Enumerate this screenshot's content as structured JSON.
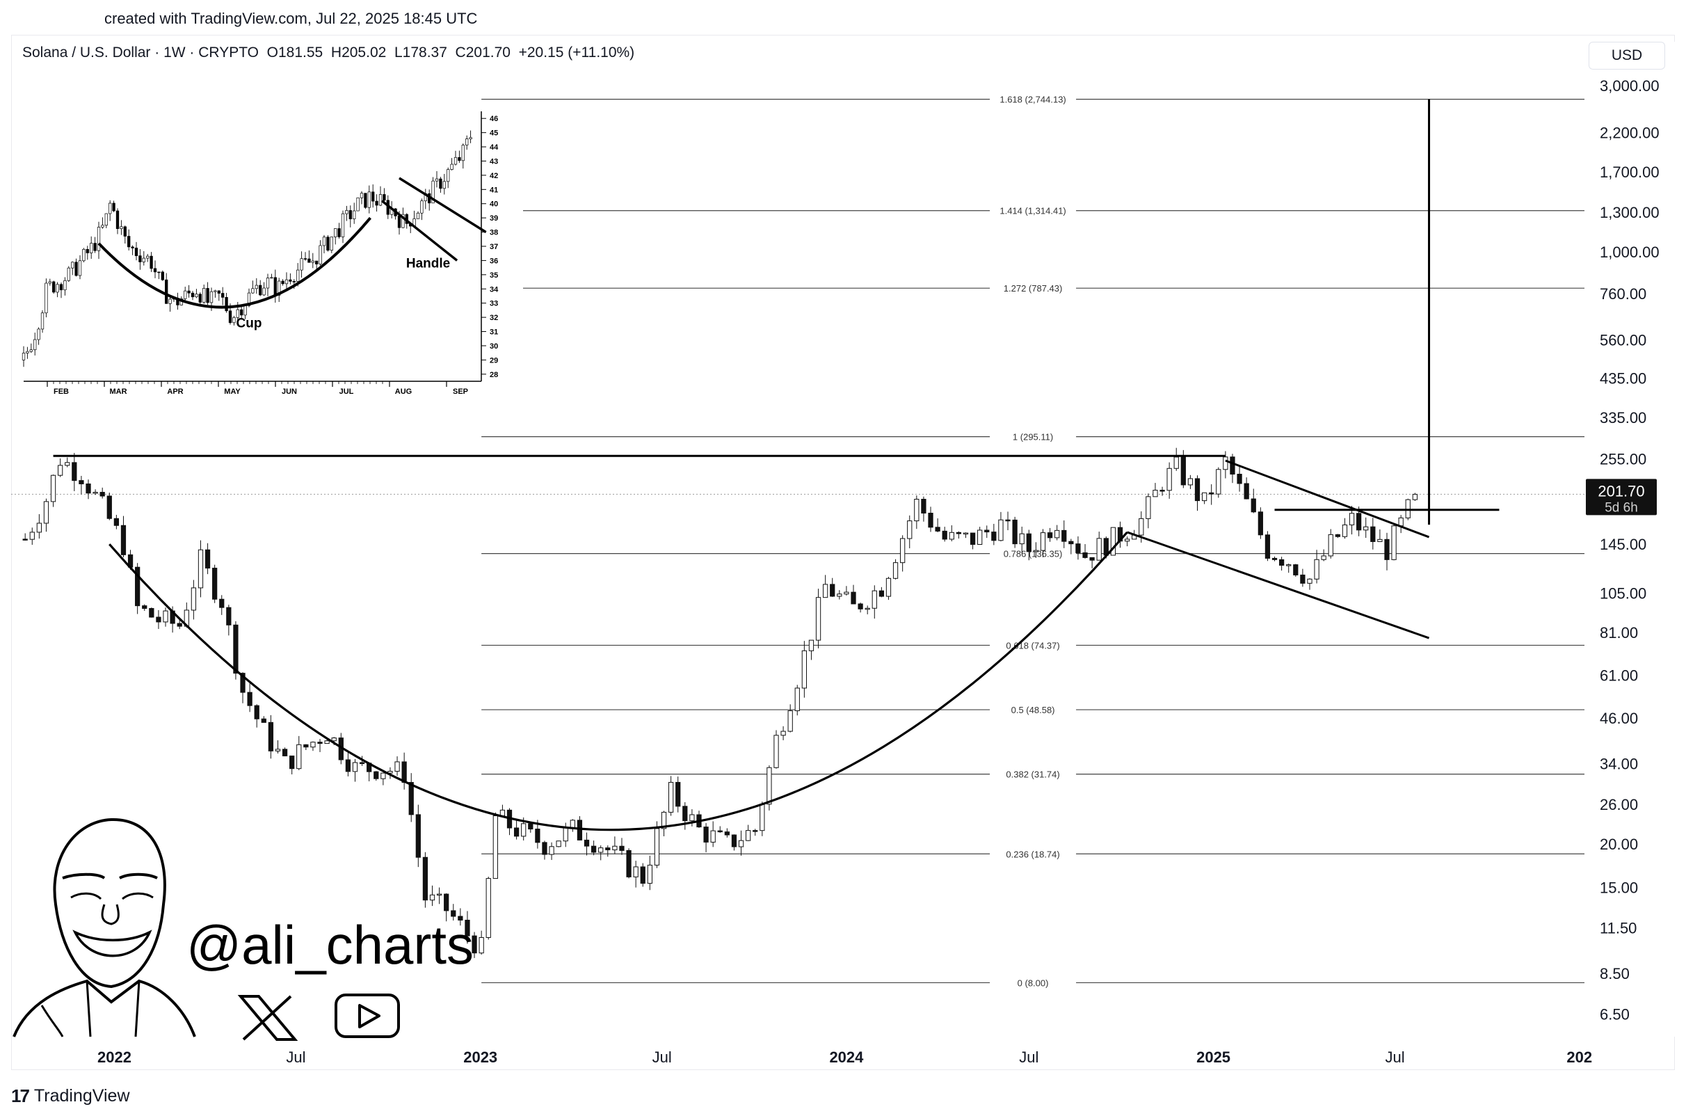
{
  "header": {
    "credit": "created with TradingView.com, Jul 22, 2025 18:45 UTC",
    "symbol": "Solana / U.S. Dollar · 1W · CRYPTO",
    "ohlc": "O181.55  H205.02  L178.37  C201.70  +20.15 (+11.10%)"
  },
  "currency_button": "USD",
  "price_tag": {
    "price": "201.70",
    "countdown": "5d 6h"
  },
  "brand": {
    "handle": "@ali_charts",
    "footer": "TradingView",
    "logo_mark": "17"
  },
  "icons": [
    "tradingview-logo-icon",
    "x-logo-icon",
    "youtube-play-icon",
    "caricature-avatar-icon"
  ],
  "chart_data": {
    "type": "candlestick",
    "yscale": "log",
    "ylim": [
      5.6,
      3400
    ],
    "x_ticks": [
      "2022",
      "Jul",
      "2023",
      "Jul",
      "2024",
      "Jul",
      "2025",
      "Jul",
      "202"
    ],
    "y_ticks": [
      "3,000.00",
      "2,200.00",
      "1,700.00",
      "1,300.00",
      "1,000.00",
      "760.00",
      "560.00",
      "435.00",
      "335.00",
      "255.00",
      "145.00",
      "105.00",
      "81.00",
      "61.00",
      "46.00",
      "34.00",
      "26.00",
      "20.00",
      "15.00",
      "11.50",
      "8.50",
      "6.50"
    ],
    "y_tick_values": [
      3000,
      2200,
      1700,
      1300,
      1000,
      760,
      560,
      435,
      335,
      255,
      145,
      105,
      81,
      61,
      46,
      34,
      26,
      20,
      15,
      11.5,
      8.5,
      6.5
    ],
    "last_price": 201.7,
    "fib_levels": [
      {
        "label": "1.618 (2,744.13)",
        "value": 2744.13
      },
      {
        "label": "1.414 (1,314.41)",
        "value": 1314.41
      },
      {
        "label": "1.272 (787.43)",
        "value": 787.43
      },
      {
        "label": "1 (295.11)",
        "value": 295.11
      },
      {
        "label": "0.786 (136.35)",
        "value": 136.35
      },
      {
        "label": "0.618 (74.37)",
        "value": 74.37
      },
      {
        "label": "0.5 (48.58)",
        "value": 48.58
      },
      {
        "label": "0.382 (31.74)",
        "value": 31.74
      },
      {
        "label": "0.236 (18.74)",
        "value": 18.74
      },
      {
        "label": "0 (8.00)",
        "value": 8.0
      }
    ],
    "price_path": [
      [
        "2021-10-04",
        150
      ],
      [
        "2021-10-25",
        195
      ],
      [
        "2021-11-08",
        255
      ],
      [
        "2021-11-29",
        230
      ],
      [
        "2021-12-20",
        185
      ],
      [
        "2022-01-10",
        145
      ],
      [
        "2022-01-24",
        95
      ],
      [
        "2022-02-14",
        88
      ],
      [
        "2022-03-07",
        85
      ],
      [
        "2022-03-28",
        130
      ],
      [
        "2022-04-18",
        100
      ],
      [
        "2022-05-09",
        55
      ],
      [
        "2022-05-30",
        42
      ],
      [
        "2022-06-20",
        34
      ],
      [
        "2022-07-11",
        38
      ],
      [
        "2022-08-01",
        42
      ],
      [
        "2022-08-29",
        33
      ],
      [
        "2022-09-26",
        33
      ],
      [
        "2022-10-17",
        32
      ],
      [
        "2022-11-07",
        14
      ],
      [
        "2022-11-28",
        13
      ],
      [
        "2022-12-19",
        11
      ],
      [
        "2023-01-02",
        10
      ],
      [
        "2023-01-16",
        24
      ],
      [
        "2023-02-06",
        22
      ],
      [
        "2023-03-06",
        20
      ],
      [
        "2023-04-03",
        22
      ],
      [
        "2023-05-01",
        20
      ],
      [
        "2023-06-12",
        16
      ],
      [
        "2023-07-10",
        28
      ],
      [
        "2023-08-07",
        22
      ],
      [
        "2023-09-04",
        20
      ],
      [
        "2023-10-02",
        22
      ],
      [
        "2023-10-23",
        40
      ],
      [
        "2023-11-13",
        60
      ],
      [
        "2023-12-11",
        110
      ],
      [
        "2024-01-08",
        95
      ],
      [
        "2024-02-05",
        110
      ],
      [
        "2024-03-11",
        190
      ],
      [
        "2024-04-08",
        150
      ],
      [
        "2024-05-06",
        150
      ],
      [
        "2024-06-03",
        165
      ],
      [
        "2024-07-01",
        140
      ],
      [
        "2024-07-29",
        170
      ],
      [
        "2024-08-26",
        135
      ],
      [
        "2024-09-23",
        150
      ],
      [
        "2024-10-21",
        170
      ],
      [
        "2024-11-11",
        220
      ],
      [
        "2024-11-25",
        240
      ],
      [
        "2024-12-23",
        190
      ],
      [
        "2025-01-13",
        250
      ],
      [
        "2025-02-03",
        190
      ],
      [
        "2025-02-24",
        140
      ],
      [
        "2025-03-17",
        130
      ],
      [
        "2025-04-07",
        115
      ],
      [
        "2025-04-28",
        145
      ],
      [
        "2025-05-19",
        170
      ],
      [
        "2025-06-09",
        150
      ],
      [
        "2025-06-23",
        140
      ],
      [
        "2025-07-07",
        165
      ],
      [
        "2025-07-21",
        201.7
      ]
    ],
    "pattern_lines": [
      {
        "name": "prior-high",
        "from": [
          "2021-11-01",
          260
        ],
        "to": [
          "2025-01-13",
          260
        ]
      },
      {
        "name": "breakout-level",
        "from": [
          "2025-03-03",
          182
        ],
        "to": [
          "2025-10-13",
          182
        ]
      },
      {
        "name": "flag-upper",
        "from": [
          "2025-01-13",
          252
        ],
        "to": [
          "2025-08-04",
          152
        ]
      },
      {
        "name": "flag-lower",
        "from": [
          "2024-10-07",
          157
        ],
        "to": [
          "2025-08-04",
          78
        ]
      },
      {
        "name": "target-projection",
        "from": [
          "2025-08-04",
          165
        ],
        "to": [
          "2025-08-04",
          2744
        ]
      }
    ],
    "inset": {
      "labels": {
        "cup": "Cup",
        "handle": "Handle"
      },
      "x_ticks": [
        "FEB",
        "MAR",
        "APR",
        "MAY",
        "JUN",
        "JUL",
        "AUG",
        "SEP"
      ],
      "y_ticks": [
        "46",
        "45",
        "44",
        "43",
        "42",
        "41",
        "40",
        "39",
        "38",
        "37",
        "36",
        "35",
        "34",
        "33",
        "32",
        "31",
        "30",
        "29",
        "28"
      ],
      "ylim": [
        27.5,
        46.5
      ],
      "price_path": [
        [
          0,
          29
        ],
        [
          2,
          31
        ],
        [
          4,
          34
        ],
        [
          6,
          34.5
        ],
        [
          8,
          35
        ],
        [
          10,
          36
        ],
        [
          12,
          37
        ],
        [
          14,
          38.5
        ],
        [
          15,
          40
        ],
        [
          16,
          39
        ],
        [
          18,
          37
        ],
        [
          20,
          36.5
        ],
        [
          22,
          36
        ],
        [
          24,
          34
        ],
        [
          26,
          33
        ],
        [
          28,
          33.5
        ],
        [
          30,
          34
        ],
        [
          32,
          33
        ],
        [
          34,
          33.5
        ],
        [
          36,
          32
        ],
        [
          38,
          33
        ],
        [
          40,
          34
        ],
        [
          42,
          34.5
        ],
        [
          44,
          34
        ],
        [
          46,
          35
        ],
        [
          48,
          35.5
        ],
        [
          50,
          36
        ],
        [
          52,
          37
        ],
        [
          54,
          38
        ],
        [
          56,
          39
        ],
        [
          58,
          40
        ],
        [
          60,
          40.5
        ],
        [
          62,
          40
        ],
        [
          64,
          39.5
        ],
        [
          66,
          38.5
        ],
        [
          68,
          39.5
        ],
        [
          70,
          40.5
        ],
        [
          72,
          41.5
        ],
        [
          74,
          42.5
        ],
        [
          76,
          43.5
        ],
        [
          78,
          45.5
        ]
      ]
    }
  }
}
